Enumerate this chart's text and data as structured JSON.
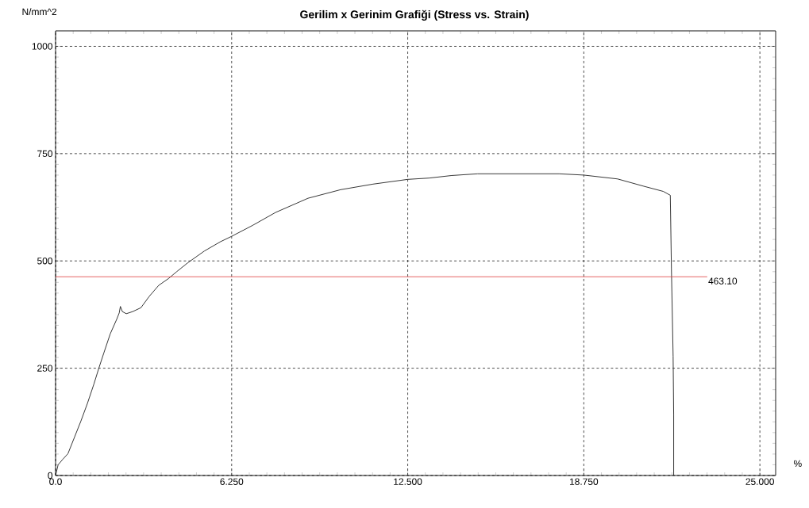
{
  "chart_data": {
    "type": "line",
    "title": "Gerilim x Gerinim Grafiği (Stress vs. Strain)",
    "xlabel": "%",
    "ylabel": "N/mm^2",
    "series": [
      {
        "color": "#202020",
        "x": [
          0,
          0.09,
          0.26,
          0.44,
          0.67,
          0.9,
          1.13,
          1.36,
          1.53,
          1.71,
          1.94,
          2.17,
          2.26,
          2.3,
          2.37,
          2.51,
          2.74,
          3.03,
          3.32,
          3.66,
          4.01,
          4.3,
          4.7,
          5.28,
          5.86,
          6.24,
          7.0,
          7.81,
          8.96,
          10.12,
          11.27,
          12.5,
          13.25,
          14.06,
          14.98,
          16.14,
          17.87,
          18.75,
          19.95,
          20.88,
          21.57,
          21.82,
          21.86,
          21.92,
          21.94,
          21.94
        ],
        "values": [
          0,
          25,
          38,
          51,
          89,
          127,
          168,
          213,
          249,
          285,
          330,
          364,
          379,
          394,
          382,
          377,
          382,
          391,
          417,
          443,
          459,
          475,
          496,
          523,
          545,
          557,
          583,
          613,
          646,
          666,
          679,
          690,
          693,
          699,
          703,
          703,
          703,
          700,
          691,
          674,
          662,
          653,
          482,
          278,
          142,
          0
        ]
      }
    ],
    "xlim": [
      0,
      25.56
    ],
    "ylim": [
      0,
      1036
    ],
    "xticks": [
      {
        "value": 0,
        "label": "0.0"
      },
      {
        "value": 6.25,
        "label": "6.250"
      },
      {
        "value": 12.5,
        "label": "12.500"
      },
      {
        "value": 18.75,
        "label": "18.750"
      },
      {
        "value": 25,
        "label": "25.000"
      }
    ],
    "yticks": [
      0,
      250,
      500,
      750,
      1000
    ],
    "grid": true,
    "ref_lines": [
      {
        "axis": "y",
        "value": 463.1,
        "label": "463.10",
        "color": "#e03c3c"
      }
    ]
  }
}
